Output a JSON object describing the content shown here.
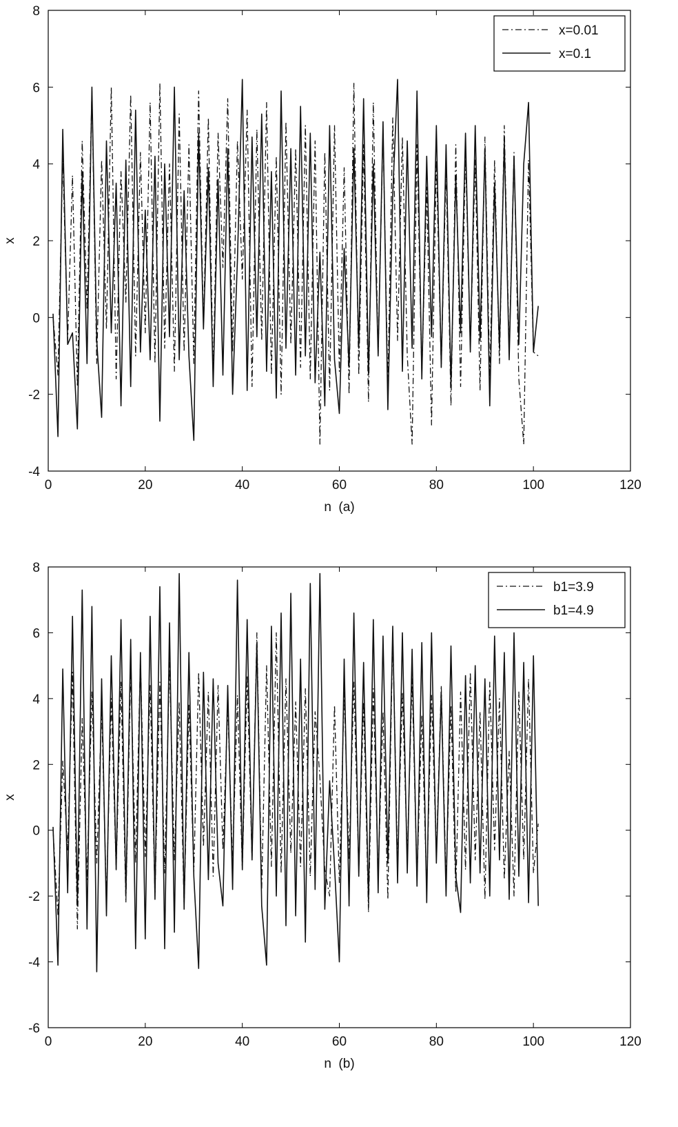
{
  "chart_data": [
    {
      "id": "a",
      "type": "line",
      "xlabel": "n  (a)",
      "ylabel": "x",
      "xlim": [
        0,
        120
      ],
      "ylim": [
        -4,
        8
      ],
      "xticks": [
        0,
        20,
        40,
        60,
        80,
        100,
        120
      ],
      "yticks": [
        -4,
        -2,
        0,
        2,
        4,
        6,
        8
      ],
      "legend_position": "top-right",
      "series": [
        {
          "name": "x=0.01",
          "style": "dashdot",
          "color": "#111111",
          "x": [
            1,
            2,
            3,
            4,
            5,
            6,
            7,
            8,
            9,
            10,
            11,
            12,
            13,
            14,
            15,
            16,
            17,
            18,
            19,
            20,
            21,
            22,
            23,
            24,
            25,
            26,
            27,
            28,
            29,
            30,
            31,
            32,
            33,
            34,
            35,
            36,
            37,
            38,
            39,
            40,
            41,
            42,
            43,
            44,
            45,
            46,
            47,
            48,
            49,
            50,
            51,
            52,
            53,
            54,
            55,
            56,
            57,
            58,
            59,
            60,
            61,
            62,
            63,
            64,
            65,
            66,
            67,
            68,
            69,
            70,
            71,
            72,
            73,
            74,
            75,
            76,
            77,
            78,
            79,
            80,
            81,
            82,
            83,
            84,
            85,
            86,
            87,
            88,
            89,
            90,
            91,
            92,
            93,
            94,
            95,
            96,
            97,
            98,
            99,
            100,
            101
          ],
          "y": [
            0.01,
            -1.5,
            4.2,
            -0.6,
            3.7,
            -1.8,
            4.6,
            0.2,
            5.9,
            -1.2,
            4.1,
            -0.3,
            6.0,
            -1.6,
            3.8,
            0.4,
            5.8,
            -1.0,
            4.3,
            -0.4,
            5.6,
            -1.2,
            6.1,
            -0.8,
            4.0,
            -1.4,
            5.3,
            -0.9,
            4.5,
            -1.2,
            5.9,
            -0.2,
            5.2,
            -1.5,
            4.8,
            1.3,
            5.7,
            -0.9,
            4.6,
            1.0,
            5.4,
            -1.8,
            4.9,
            -0.6,
            5.6,
            -1.5,
            4.2,
            -2.0,
            5.1,
            -0.7,
            4.4,
            -1.3,
            5.0,
            -1.6,
            4.6,
            -3.3,
            4.3,
            -1.9,
            5.0,
            -1.4,
            3.9,
            -2.0,
            6.1,
            -1.5,
            4.5,
            -2.2,
            5.6,
            -1.0,
            4.9,
            -1.8,
            5.2,
            -0.6,
            4.7,
            -1.0,
            -3.3,
            4.5,
            -1.5,
            3.4,
            -2.8,
            4.1,
            -1.3,
            3.9,
            -2.3,
            4.5,
            -1.8,
            4.3,
            -0.8,
            4.1,
            -1.9,
            4.7,
            -1.6,
            4.1,
            -1.2,
            5.0,
            -0.9,
            4.3,
            -1.6,
            -3.3,
            4.1,
            -0.9,
            -1.0
          ]
        },
        {
          "name": "x=0.1",
          "style": "solid",
          "color": "#111111",
          "x": [
            1,
            2,
            3,
            4,
            5,
            6,
            7,
            8,
            9,
            10,
            11,
            12,
            13,
            14,
            15,
            16,
            17,
            18,
            19,
            20,
            21,
            22,
            23,
            24,
            25,
            26,
            27,
            28,
            29,
            30,
            31,
            32,
            33,
            34,
            35,
            36,
            37,
            38,
            39,
            40,
            41,
            42,
            43,
            44,
            45,
            46,
            47,
            48,
            49,
            50,
            51,
            52,
            53,
            54,
            55,
            56,
            57,
            58,
            59,
            60,
            61,
            62,
            63,
            64,
            65,
            66,
            67,
            68,
            69,
            70,
            71,
            72,
            73,
            74,
            75,
            76,
            77,
            78,
            79,
            80,
            81,
            82,
            83,
            84,
            85,
            86,
            87,
            88,
            89,
            90,
            91,
            92,
            93,
            94,
            95,
            96,
            97,
            98,
            99,
            100,
            101
          ],
          "y": [
            0.1,
            -3.1,
            4.9,
            -0.7,
            -0.4,
            -2.9,
            3.8,
            -1.2,
            6.0,
            -0.6,
            -2.6,
            4.6,
            -0.4,
            3.5,
            -2.3,
            4.1,
            -1.8,
            5.4,
            -0.9,
            2.8,
            -1.1,
            4.2,
            -2.7,
            4.0,
            -0.5,
            6.0,
            -1.1,
            3.3,
            -1.0,
            -3.2,
            4.8,
            -0.3,
            3.9,
            -1.8,
            3.6,
            -1.5,
            4.4,
            -2.0,
            1.5,
            6.2,
            -1.9,
            4.7,
            -0.5,
            5.3,
            -1.4,
            3.8,
            -2.1,
            5.9,
            -0.8,
            4.4,
            -1.5,
            5.5,
            -1.0,
            4.8,
            -1.7,
            1.7,
            -2.3,
            5.0,
            -1.1,
            -2.5,
            1.8,
            -1.3,
            4.4,
            -0.8,
            5.7,
            -1.5,
            4.0,
            -1.0,
            5.1,
            -2.4,
            3.2,
            6.2,
            -1.4,
            4.6,
            -0.8,
            5.9,
            -1.6,
            4.2,
            -0.5,
            5.0,
            -1.3,
            4.5,
            -1.8,
            3.7,
            -0.4,
            4.8,
            -0.9,
            5.0,
            -0.6,
            4.4,
            -2.3,
            3.5,
            -0.8,
            4.6,
            -1.1,
            4.2,
            -0.7,
            4.0,
            5.6,
            -0.9,
            0.3
          ]
        }
      ]
    },
    {
      "id": "b",
      "type": "line",
      "xlabel": "n  (b)",
      "ylabel": "x",
      "xlim": [
        0,
        120
      ],
      "ylim": [
        -6,
        8
      ],
      "xticks": [
        0,
        20,
        40,
        60,
        80,
        100,
        120
      ],
      "yticks": [
        -6,
        -4,
        -2,
        0,
        2,
        4,
        6,
        8
      ],
      "legend_position": "top-right",
      "series": [
        {
          "name": "b1=3.9",
          "style": "dashdot",
          "color": "#111111",
          "x": [
            1,
            2,
            3,
            4,
            5,
            6,
            7,
            8,
            9,
            10,
            11,
            12,
            13,
            14,
            15,
            16,
            17,
            18,
            19,
            20,
            21,
            22,
            23,
            24,
            25,
            26,
            27,
            28,
            29,
            30,
            31,
            32,
            33,
            34,
            35,
            36,
            37,
            38,
            39,
            40,
            41,
            42,
            43,
            44,
            45,
            46,
            47,
            48,
            49,
            50,
            51,
            52,
            53,
            54,
            55,
            56,
            57,
            58,
            59,
            60,
            61,
            62,
            63,
            64,
            65,
            66,
            67,
            68,
            69,
            70,
            71,
            72,
            73,
            74,
            75,
            76,
            77,
            78,
            79,
            80,
            81,
            82,
            83,
            84,
            85,
            86,
            87,
            88,
            89,
            90,
            91,
            92,
            93,
            94,
            95,
            96,
            97,
            98,
            99,
            100,
            101
          ],
          "y": [
            0.0,
            -2.6,
            2.1,
            -0.6,
            4.8,
            -3.0,
            3.4,
            -1.5,
            4.2,
            -1.0,
            3.7,
            -2.1,
            4.0,
            -1.2,
            4.5,
            -2.2,
            4.9,
            -1.0,
            5.2,
            -0.8,
            4.4,
            -2.0,
            4.5,
            -1.3,
            5.1,
            -0.9,
            3.9,
            -2.3,
            3.8,
            -1.3,
            4.8,
            -0.5,
            4.2,
            -1.4,
            4.4,
            -0.6,
            3.8,
            -1.0,
            4.1,
            -1.2,
            4.7,
            -0.9,
            6.0,
            -1.8,
            5.0,
            -1.1,
            6.0,
            -1.3,
            4.6,
            -0.7,
            3.9,
            -1.1,
            4.3,
            -1.4,
            3.6,
            1.6,
            -1.2,
            -2.0,
            3.8,
            -1.6,
            4.2,
            -0.9,
            4.5,
            -1.2,
            3.9,
            -2.5,
            4.3,
            -1.4,
            3.6,
            -2.1,
            6.0,
            -1.0,
            4.2,
            -0.8,
            4.6,
            -1.5,
            3.5,
            -1.8,
            4.1,
            -0.7,
            4.4,
            -1.6,
            3.8,
            -1.9,
            4.2,
            -1.2,
            4.8,
            -0.9,
            3.6,
            -2.1,
            4.5,
            -0.6,
            4.0,
            -1.5,
            2.4,
            -2.0,
            4.2,
            -0.9,
            4.6,
            -1.3,
            0.2
          ]
        },
        {
          "name": "b1=4.9",
          "style": "solid",
          "color": "#111111",
          "x": [
            1,
            2,
            3,
            4,
            5,
            6,
            7,
            8,
            9,
            10,
            11,
            12,
            13,
            14,
            15,
            16,
            17,
            18,
            19,
            20,
            21,
            22,
            23,
            24,
            25,
            26,
            27,
            28,
            29,
            30,
            31,
            32,
            33,
            34,
            35,
            36,
            37,
            38,
            39,
            40,
            41,
            42,
            43,
            44,
            45,
            46,
            47,
            48,
            49,
            50,
            51,
            52,
            53,
            54,
            55,
            56,
            57,
            58,
            59,
            60,
            61,
            62,
            63,
            64,
            65,
            66,
            67,
            68,
            69,
            70,
            71,
            72,
            73,
            74,
            75,
            76,
            77,
            78,
            79,
            80,
            81,
            82,
            83,
            84,
            85,
            86,
            87,
            88,
            89,
            90,
            91,
            92,
            93,
            94,
            95,
            96,
            97,
            98,
            99,
            100,
            101
          ],
          "y": [
            0.1,
            -4.1,
            4.9,
            -1.9,
            6.5,
            -2.3,
            7.3,
            -3.0,
            6.8,
            -4.3,
            4.6,
            -2.6,
            5.3,
            -1.2,
            6.4,
            -2.0,
            5.8,
            -3.6,
            5.4,
            -3.3,
            6.5,
            -2.1,
            7.4,
            -3.6,
            6.3,
            -3.1,
            7.8,
            -2.4,
            5.4,
            -1.4,
            -4.2,
            4.8,
            -1.5,
            4.6,
            -1.0,
            -2.3,
            4.4,
            -1.8,
            7.6,
            -1.2,
            6.4,
            -0.9,
            5.7,
            -2.3,
            -4.1,
            6.2,
            -2.0,
            6.6,
            -2.9,
            7.2,
            -2.6,
            5.2,
            -3.4,
            7.5,
            -1.8,
            7.8,
            -2.4,
            1.5,
            -1.1,
            -4.0,
            5.2,
            -2.3,
            6.6,
            -1.4,
            5.1,
            -2.2,
            6.4,
            -1.9,
            5.9,
            -1.0,
            6.2,
            -1.6,
            6.0,
            -1.3,
            5.5,
            -1.7,
            5.7,
            -2.2,
            6.0,
            -1.0,
            4.2,
            -2.0,
            5.6,
            -1.4,
            -2.5,
            4.7,
            -1.6,
            5.0,
            -1.3,
            4.6,
            -2.0,
            5.9,
            -0.9,
            5.4,
            -2.1,
            6.0,
            -1.4,
            5.1,
            -2.2,
            5.3,
            -2.3
          ]
        }
      ]
    }
  ]
}
